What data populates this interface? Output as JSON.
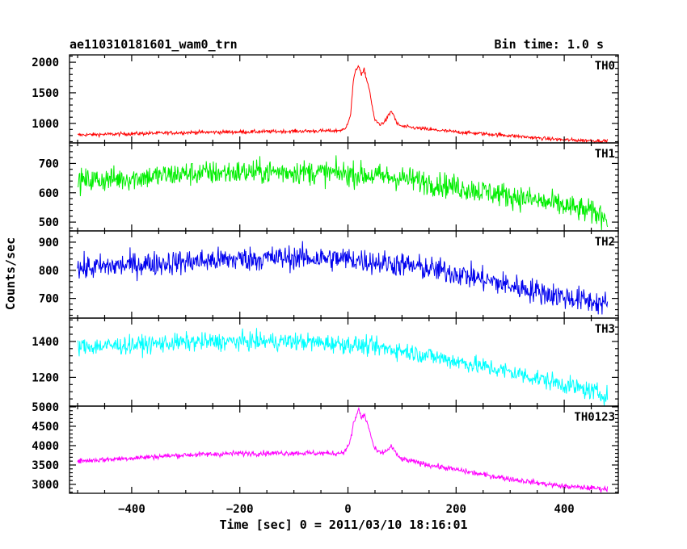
{
  "header": {
    "title": "ae110310181601_wam0_trn",
    "bin_time": "Bin time: 1.0 s"
  },
  "chart_data": {
    "type": "line",
    "title": "ae110310181601_wam0_trn",
    "subtitle": "Bin time: 1.0 s",
    "xlabel": "Time [sec] 0 = 2011/03/10 18:16:01",
    "ylabel": "Counts/sec",
    "xlim": [
      -515,
      500
    ],
    "x_ticks": [
      -400,
      -200,
      0,
      200,
      400
    ],
    "grid": false,
    "panels": [
      {
        "name": "TH0",
        "color": "#ff0000",
        "ylim": [
          680,
          2120
        ],
        "y_ticks": [
          1000,
          1500,
          2000
        ],
        "noise": 28,
        "series": {
          "x": [
            -500,
            -400,
            -300,
            -200,
            -100,
            -20,
            -5,
            5,
            10,
            15,
            20,
            25,
            30,
            35,
            40,
            45,
            50,
            60,
            70,
            80,
            85,
            90,
            100,
            150,
            200,
            250,
            300,
            350,
            400,
            480
          ],
          "values": [
            810,
            830,
            850,
            860,
            870,
            880,
            900,
            1150,
            1700,
            1880,
            1950,
            1780,
            1880,
            1700,
            1550,
            1250,
            1050,
            980,
            1050,
            1200,
            1130,
            1000,
            950,
            900,
            860,
            830,
            800,
            760,
            730,
            710
          ]
        }
      },
      {
        "name": "TH1",
        "color": "#00ee00",
        "ylim": [
          470,
          770
        ],
        "y_ticks": [
          500,
          600,
          700
        ],
        "noise": 40,
        "series": {
          "x": [
            -500,
            -400,
            -300,
            -200,
            -100,
            0,
            100,
            200,
            300,
            400,
            480
          ],
          "values": [
            640,
            650,
            665,
            670,
            672,
            665,
            650,
            620,
            590,
            555,
            520
          ]
        }
      },
      {
        "name": "TH2",
        "color": "#0000ee",
        "ylim": [
          630,
          940
        ],
        "y_ticks": [
          700,
          800,
          900
        ],
        "noise": 42,
        "series": {
          "x": [
            -500,
            -400,
            -300,
            -200,
            -100,
            0,
            100,
            200,
            300,
            400,
            480
          ],
          "values": [
            805,
            820,
            830,
            840,
            845,
            840,
            820,
            790,
            745,
            705,
            680
          ]
        }
      },
      {
        "name": "TH3",
        "color": "#00ffff",
        "ylim": [
          1040,
          1530
        ],
        "y_ticks": [
          1200,
          1400
        ],
        "noise": 48,
        "series": {
          "x": [
            -500,
            -400,
            -300,
            -200,
            -100,
            0,
            100,
            200,
            300,
            400,
            480
          ],
          "values": [
            1370,
            1380,
            1395,
            1400,
            1400,
            1385,
            1350,
            1290,
            1230,
            1160,
            1100
          ]
        }
      },
      {
        "name": "TH0123",
        "color": "#ff00ff",
        "ylim": [
          2770,
          5020
        ],
        "y_ticks": [
          3000,
          3500,
          4000,
          4500,
          5000
        ],
        "y_tick_labels": [
          "3000",
          "3500",
          "4000",
          "4500",
          "5000"
        ],
        "noise": 65,
        "series": {
          "x": [
            -500,
            -400,
            -300,
            -200,
            -100,
            -20,
            -5,
            5,
            10,
            15,
            20,
            25,
            30,
            35,
            40,
            45,
            50,
            60,
            70,
            80,
            85,
            90,
            100,
            150,
            200,
            250,
            300,
            350,
            400,
            480
          ],
          "values": [
            3600,
            3680,
            3760,
            3800,
            3810,
            3800,
            3850,
            4150,
            4550,
            4750,
            4950,
            4700,
            4800,
            4600,
            4400,
            4100,
            3900,
            3800,
            3850,
            3980,
            3900,
            3750,
            3650,
            3500,
            3380,
            3250,
            3140,
            3040,
            2950,
            2880
          ]
        }
      }
    ]
  }
}
